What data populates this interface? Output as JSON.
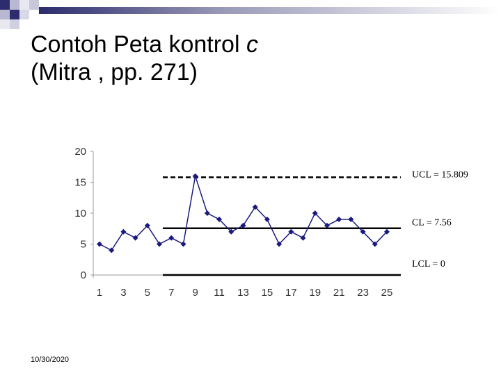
{
  "slide": {
    "title_line1": "Contoh Peta kontrol ",
    "title_var": "c",
    "title_line2": "(Mitra , pp. 271)",
    "date": "10/30/2020"
  },
  "colors": {
    "marker": "#1a1a80",
    "line": "#1a1a80",
    "control_lines": "#000000",
    "axis_text": "#333333",
    "header_bar_start": "#2c2c6e",
    "header_bar_end": "#ffffff"
  },
  "chart_data": {
    "type": "line",
    "x": [
      1,
      2,
      3,
      4,
      5,
      6,
      7,
      8,
      9,
      10,
      11,
      12,
      13,
      14,
      15,
      16,
      17,
      18,
      19,
      20,
      21,
      22,
      23,
      24,
      25
    ],
    "xticks": [
      "1",
      "3",
      "5",
      "7",
      "9",
      "11",
      "13",
      "15",
      "17",
      "19",
      "21",
      "23",
      "25"
    ],
    "yticks": [
      "0",
      "5",
      "10",
      "15",
      "20"
    ],
    "series": [
      {
        "values": [
          5,
          4,
          7,
          6,
          8,
          5,
          6,
          5,
          16,
          10,
          9,
          7,
          8,
          11,
          9,
          5,
          7,
          6,
          10,
          8,
          9,
          9,
          7,
          5,
          7
        ]
      }
    ],
    "ylim": [
      0,
      20
    ],
    "xlim": [
      1,
      25
    ],
    "control_limits": [
      {
        "label": "UCL = 15.809",
        "value": 15.809,
        "style": "dashed"
      },
      {
        "label": "CL = 7.56",
        "value": 7.56,
        "style": "solid"
      },
      {
        "label": "LCL = 0",
        "value": 0,
        "style": "solid"
      }
    ],
    "grid": false,
    "legend": "none"
  }
}
